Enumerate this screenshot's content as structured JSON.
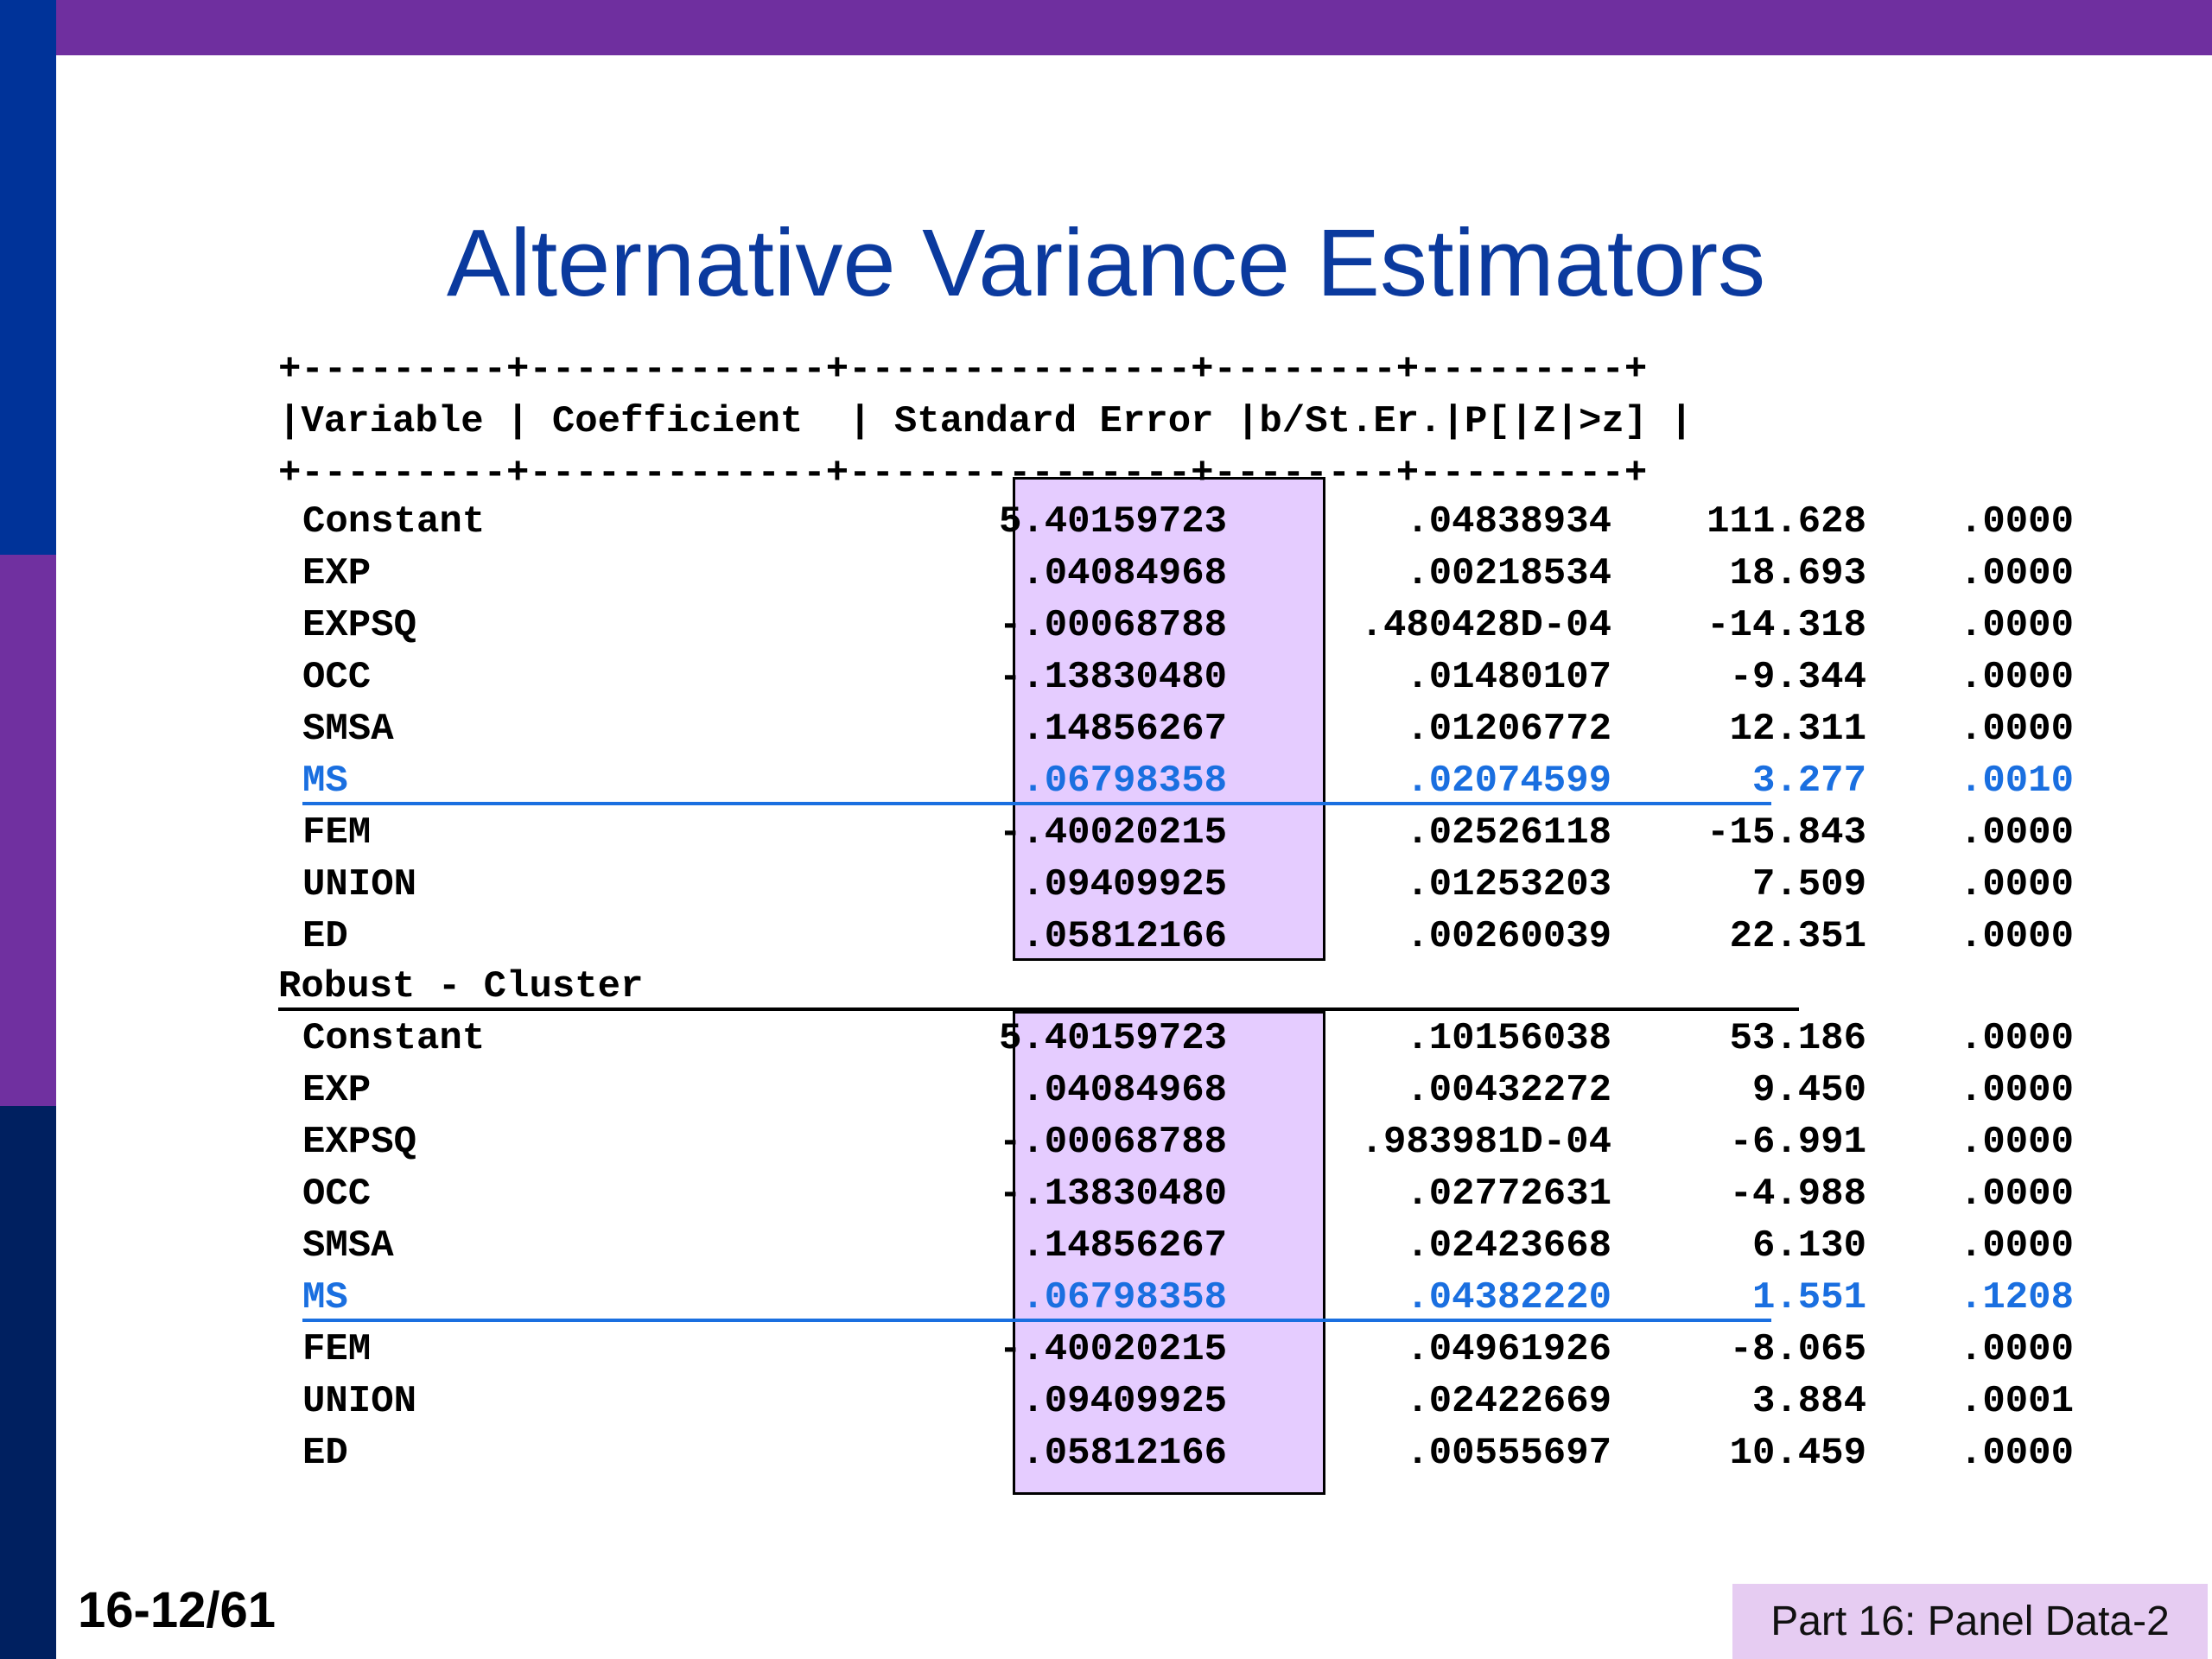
{
  "title": "Alternative Variance Estimators",
  "table": {
    "border": "+---------+-------------+---------------+--------+---------+",
    "header": "|Variable | Coefficient  | Standard Error |b/St.Er.|P[|Z|>z] |",
    "section1_rows": [
      {
        "variable": "Constant",
        "coefficient": "5.40159723",
        "std_error": ".04838934",
        "b_st_er": "111.628",
        "p": ".0000"
      },
      {
        "variable": "EXP",
        "coefficient": ".04084968",
        "std_error": ".00218534",
        "b_st_er": "18.693",
        "p": ".0000"
      },
      {
        "variable": "EXPSQ",
        "coefficient": "-.00068788",
        "std_error": ".480428D-04",
        "b_st_er": "-14.318",
        "p": ".0000"
      },
      {
        "variable": "OCC",
        "coefficient": "-.13830480",
        "std_error": ".01480107",
        "b_st_er": "-9.344",
        "p": ".0000"
      },
      {
        "variable": "SMSA",
        "coefficient": ".14856267",
        "std_error": ".01206772",
        "b_st_er": "12.311",
        "p": ".0000"
      },
      {
        "variable": "MS",
        "coefficient": ".06798358",
        "std_error": ".02074599",
        "b_st_er": "3.277",
        "p": ".0010"
      },
      {
        "variable": "FEM",
        "coefficient": "-.40020215",
        "std_error": ".02526118",
        "b_st_er": "-15.843",
        "p": ".0000"
      },
      {
        "variable": "UNION",
        "coefficient": ".09409925",
        "std_error": ".01253203",
        "b_st_er": "7.509",
        "p": ".0000"
      },
      {
        "variable": "ED",
        "coefficient": ".05812166",
        "std_error": ".00260039",
        "b_st_er": "22.351",
        "p": ".0000"
      }
    ],
    "section2_label": "Robust - Cluster",
    "section2_rows": [
      {
        "variable": "Constant",
        "coefficient": "5.40159723",
        "std_error": ".10156038",
        "b_st_er": "53.186",
        "p": ".0000"
      },
      {
        "variable": "EXP",
        "coefficient": ".04084968",
        "std_error": ".00432272",
        "b_st_er": "9.450",
        "p": ".0000"
      },
      {
        "variable": "EXPSQ",
        "coefficient": "-.00068788",
        "std_error": ".983981D-04",
        "b_st_er": "-6.991",
        "p": ".0000"
      },
      {
        "variable": "OCC",
        "coefficient": "-.13830480",
        "std_error": ".02772631",
        "b_st_er": "-4.988",
        "p": ".0000"
      },
      {
        "variable": "SMSA",
        "coefficient": ".14856267",
        "std_error": ".02423668",
        "b_st_er": "6.130",
        "p": ".0000"
      },
      {
        "variable": "MS",
        "coefficient": ".06798358",
        "std_error": ".04382220",
        "b_st_er": "1.551",
        "p": ".1208"
      },
      {
        "variable": "FEM",
        "coefficient": "-.40020215",
        "std_error": ".04961926",
        "b_st_er": "-8.065",
        "p": ".0000"
      },
      {
        "variable": "UNION",
        "coefficient": ".09409925",
        "std_error": ".02422669",
        "b_st_er": "3.884",
        "p": ".0001"
      },
      {
        "variable": "ED",
        "coefficient": ".05812166",
        "std_error": ".00555697",
        "b_st_er": "10.459",
        "p": ".0000"
      }
    ]
  },
  "slide_number": "16-12/61",
  "footer": "Part 16: Panel Data-2",
  "colors": {
    "top_bar": "#6F2F9F",
    "title": "#0B3A9E",
    "highlight_row": "#1A6FE0",
    "se_box": "#E5CCFF"
  }
}
